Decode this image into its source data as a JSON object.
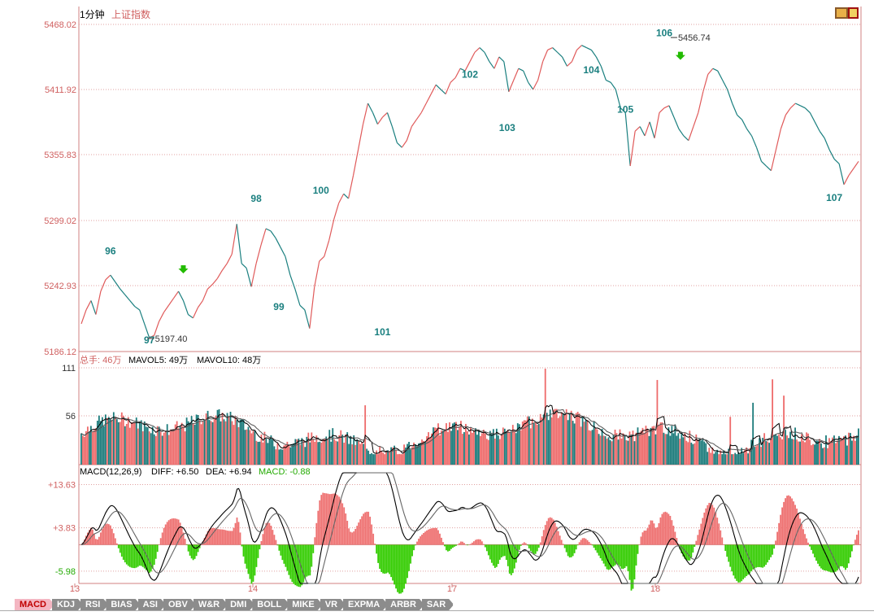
{
  "chart_data": [
    {
      "type": "line",
      "panel": "price",
      "title": "1分钟",
      "subtitle": "上证指数",
      "y_ticks": [
        "5468.02",
        "5411.92",
        "5355.83",
        "5299.02",
        "5242.93",
        "5186.12"
      ],
      "ylim": [
        5186.12,
        5468.02
      ],
      "series": [
        {
          "x": [
            0,
            3,
            6,
            9,
            12,
            15,
            18,
            21,
            24,
            27,
            30,
            33,
            36,
            39,
            42,
            45,
            48,
            51,
            54,
            57,
            60,
            63,
            66,
            69,
            72,
            75,
            78,
            81,
            84,
            87,
            90,
            93,
            96,
            99,
            102,
            105,
            108,
            111,
            114,
            117,
            120,
            123,
            126,
            129,
            132,
            135,
            138,
            141,
            144,
            147,
            150,
            153,
            156,
            159,
            162,
            165,
            168,
            171,
            174,
            177,
            180,
            183,
            186,
            189,
            192,
            195,
            198,
            201,
            204,
            207,
            210,
            213,
            216,
            219,
            222,
            225,
            228,
            231,
            234,
            237,
            240,
            243,
            246,
            249,
            252,
            255,
            258,
            261,
            264,
            267,
            270,
            273,
            276,
            279,
            282,
            285,
            288,
            291,
            294,
            297,
            300,
            303,
            306,
            309,
            312,
            315,
            318,
            321,
            324,
            327,
            330,
            333,
            336,
            339,
            342,
            345,
            348,
            351,
            354,
            357,
            360,
            363,
            366,
            369,
            372,
            375,
            378,
            381,
            384,
            387,
            390,
            393,
            396,
            399,
            402,
            405,
            408,
            411,
            414,
            417,
            420,
            423,
            426,
            429,
            432,
            435,
            438,
            441,
            444,
            447,
            450,
            453,
            456,
            459,
            462,
            465,
            468,
            471,
            474,
            477,
            480
          ],
          "values": [
            5210,
            5222,
            5230,
            5218,
            5238,
            5248,
            5252,
            5246,
            5240,
            5235,
            5230,
            5225,
            5222,
            5210,
            5198,
            5200,
            5212,
            5220,
            5226,
            5232,
            5238,
            5230,
            5218,
            5215,
            5224,
            5230,
            5240,
            5244,
            5249,
            5256,
            5262,
            5270,
            5296,
            5262,
            5258,
            5242,
            5262,
            5278,
            5292,
            5290,
            5284,
            5276,
            5268,
            5252,
            5240,
            5226,
            5222,
            5206,
            5242,
            5264,
            5268,
            5282,
            5300,
            5314,
            5322,
            5318,
            5338,
            5360,
            5382,
            5400,
            5392,
            5382,
            5388,
            5392,
            5380,
            5366,
            5362,
            5368,
            5380,
            5386,
            5392,
            5400,
            5408,
            5416,
            5412,
            5408,
            5418,
            5422,
            5430,
            5428,
            5436,
            5444,
            5448,
            5444,
            5436,
            5430,
            5440,
            5436,
            5410,
            5420,
            5430,
            5428,
            5418,
            5412,
            5420,
            5436,
            5446,
            5448,
            5444,
            5440,
            5432,
            5436,
            5446,
            5450,
            5448,
            5446,
            5440,
            5432,
            5420,
            5418,
            5412,
            5396,
            5392,
            5346,
            5376,
            5380,
            5372,
            5384,
            5370,
            5392,
            5396,
            5398,
            5388,
            5378,
            5372,
            5368,
            5380,
            5392,
            5410,
            5425,
            5430,
            5428,
            5420,
            5412,
            5400,
            5390,
            5386,
            5378,
            5372,
            5362,
            5350,
            5346,
            5342,
            5360,
            5378,
            5390,
            5396,
            5400,
            5398,
            5396,
            5392,
            5384,
            5376,
            5370,
            5360,
            5352,
            5348,
            5330,
            5338,
            5344,
            5350
          ]
        }
      ],
      "annotations": [
        {
          "text": "96",
          "x": 18,
          "y": 5270
        },
        {
          "text": "97",
          "x": 42,
          "y": 5193
        },
        {
          "text": "98",
          "x": 108,
          "y": 5315
        },
        {
          "text": "99",
          "x": 122,
          "y": 5222
        },
        {
          "text": "100",
          "x": 148,
          "y": 5322
        },
        {
          "text": "101",
          "x": 186,
          "y": 5200
        },
        {
          "text": "102",
          "x": 240,
          "y": 5422
        },
        {
          "text": "103",
          "x": 263,
          "y": 5376
        },
        {
          "text": "104",
          "x": 315,
          "y": 5426
        },
        {
          "text": "105",
          "x": 336,
          "y": 5392
        },
        {
          "text": "106",
          "x": 360,
          "y": 5458
        },
        {
          "text": "107",
          "x": 465,
          "y": 5316
        }
      ],
      "price_labels": [
        {
          "text": "5197.40",
          "x": 43,
          "y": 5197.4
        },
        {
          "text": "5456.74",
          "x": 366,
          "y": 5456.74
        }
      ],
      "arrows": [
        {
          "x": 63,
          "y": 5252
        },
        {
          "x": 370,
          "y": 5436
        }
      ],
      "colors": {
        "up": "#e05a5a",
        "down": "#1a7f7f",
        "grid": "#d08080",
        "label": "#1a7f7f",
        "arrow": "#22bb00"
      }
    },
    {
      "type": "bar",
      "panel": "volume",
      "legend": [
        "总手: 46万",
        "MAVOL5: 49万",
        "MAVOL10: 48万"
      ],
      "y_ticks": [
        "111",
        "56"
      ],
      "ylim": [
        0,
        111
      ]
    },
    {
      "type": "area",
      "panel": "macd",
      "legend": [
        "MACD(12,26,9)",
        "DIFF: +6.50",
        "DEA: +6.94",
        "MACD: -0.88"
      ],
      "y_ticks": [
        "+13.63",
        "+3.83",
        "-5.98"
      ],
      "ylim": [
        -5.98,
        13.63
      ]
    }
  ],
  "x_axis": {
    "labels": [
      "13",
      "14",
      "17",
      "18"
    ]
  },
  "tabs": [
    "MACD",
    "KDJ",
    "RSI",
    "BIAS",
    "ASI",
    "OBV",
    "W&R",
    "DMI",
    "BOLL",
    "MIKE",
    "VR",
    "EXPMA",
    "ARBR",
    "SAR"
  ],
  "active_tab": "MACD",
  "toolbar_icon": "chart-toggle-icon"
}
